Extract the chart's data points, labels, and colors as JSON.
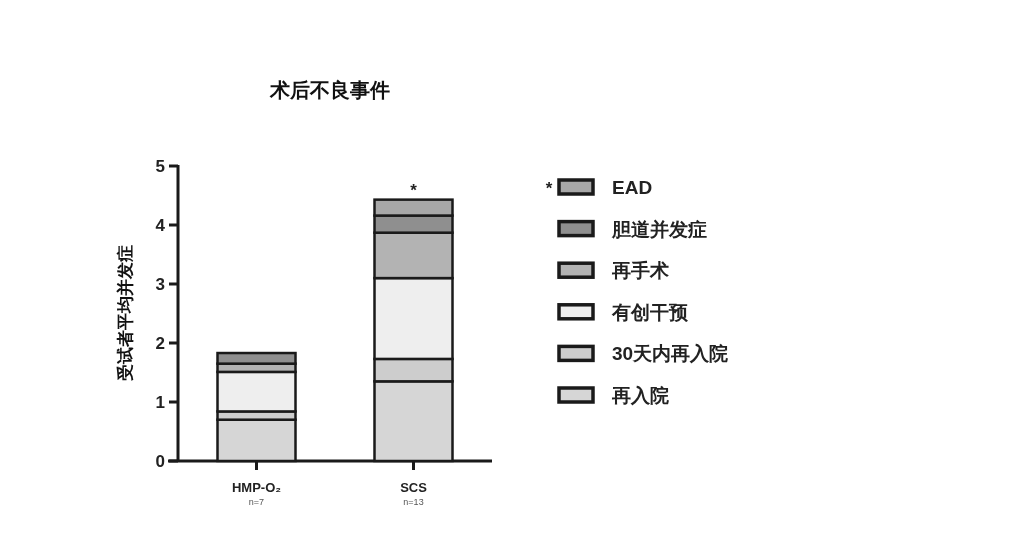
{
  "chart_data": {
    "type": "bar",
    "stacked": true,
    "title": "术后不良事件",
    "ylabel": "受试者平均并发症",
    "categories": [
      "HMP-O₂\nn=7",
      "SCS\nn=13"
    ],
    "series": [
      {
        "name": "再入院",
        "color": "#d6d6d6",
        "values": [
          0.7,
          1.35
        ]
      },
      {
        "name": "30天内再入院",
        "color": "#cdcdcd",
        "values": [
          0.14,
          0.38
        ]
      },
      {
        "name": "有创干预",
        "color": "#eeeeee",
        "values": [
          0.67,
          1.37
        ]
      },
      {
        "name": "再手术",
        "color": "#b3b3b3",
        "values": [
          0.14,
          0.77
        ]
      },
      {
        "name": "胆道并发症",
        "color": "#8f8f8f",
        "values": [
          0.18,
          0.29
        ]
      },
      {
        "name": "EAD",
        "color": "#a8a8a8",
        "values": [
          0,
          0.27
        ]
      }
    ],
    "ylim": [
      0,
      5
    ],
    "yticks": [
      0,
      1,
      2,
      3,
      4,
      5
    ],
    "legend": "right",
    "annotations": [
      {
        "text": "*",
        "x": "SCS\nn=13",
        "y": 4.43
      },
      "*"
    ]
  }
}
